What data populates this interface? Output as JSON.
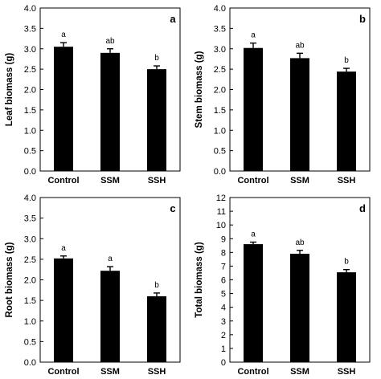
{
  "chart_data": [
    {
      "type": "bar",
      "panel_label": "a",
      "ylabel": "Leaf biomass (g)",
      "categories": [
        "Control",
        "SSM",
        "SSH"
      ],
      "values": [
        3.05,
        2.9,
        2.5
      ],
      "errors": [
        0.1,
        0.1,
        0.08
      ],
      "significance": [
        "a",
        "ab",
        "b"
      ],
      "ylim": [
        0,
        4.0
      ],
      "yticks": [
        "0.0",
        "0.5",
        "1.0",
        "1.5",
        "2.0",
        "2.5",
        "3.0",
        "3.5",
        "4.0"
      ],
      "color": "#000000",
      "grid": false
    },
    {
      "type": "bar",
      "panel_label": "b",
      "ylabel": "Stem biomass (g)",
      "categories": [
        "Control",
        "SSM",
        "SSH"
      ],
      "values": [
        3.02,
        2.77,
        2.44
      ],
      "errors": [
        0.12,
        0.12,
        0.08
      ],
      "significance": [
        "a",
        "ab",
        "b"
      ],
      "ylim": [
        0,
        4.0
      ],
      "yticks": [
        "0.0",
        "0.5",
        "1.0",
        "1.5",
        "2.0",
        "2.5",
        "3.0",
        "3.5",
        "4.0"
      ],
      "color": "#000000",
      "grid": false
    },
    {
      "type": "bar",
      "panel_label": "c",
      "ylabel": "Root biomass (g)",
      "categories": [
        "Control",
        "SSM",
        "SSH"
      ],
      "values": [
        2.52,
        2.22,
        1.6
      ],
      "errors": [
        0.06,
        0.1,
        0.08
      ],
      "significance": [
        "a",
        "a",
        "b"
      ],
      "ylim": [
        0,
        4.0
      ],
      "yticks": [
        "0.0",
        "0.5",
        "1.0",
        "1.5",
        "2.0",
        "2.5",
        "3.0",
        "3.5",
        "4.0"
      ],
      "color": "#000000",
      "grid": false
    },
    {
      "type": "bar",
      "panel_label": "d",
      "ylabel": "Total biomass (g)",
      "categories": [
        "Control",
        "SSM",
        "SSH"
      ],
      "values": [
        8.6,
        7.9,
        6.55
      ],
      "errors": [
        0.15,
        0.25,
        0.2
      ],
      "significance": [
        "a",
        "ab",
        "b"
      ],
      "ylim": [
        0,
        12
      ],
      "yticks": [
        "0",
        "1",
        "2",
        "3",
        "4",
        "5",
        "6",
        "7",
        "8",
        "9",
        "10",
        "11",
        "12"
      ],
      "color": "#000000",
      "grid": false
    }
  ]
}
